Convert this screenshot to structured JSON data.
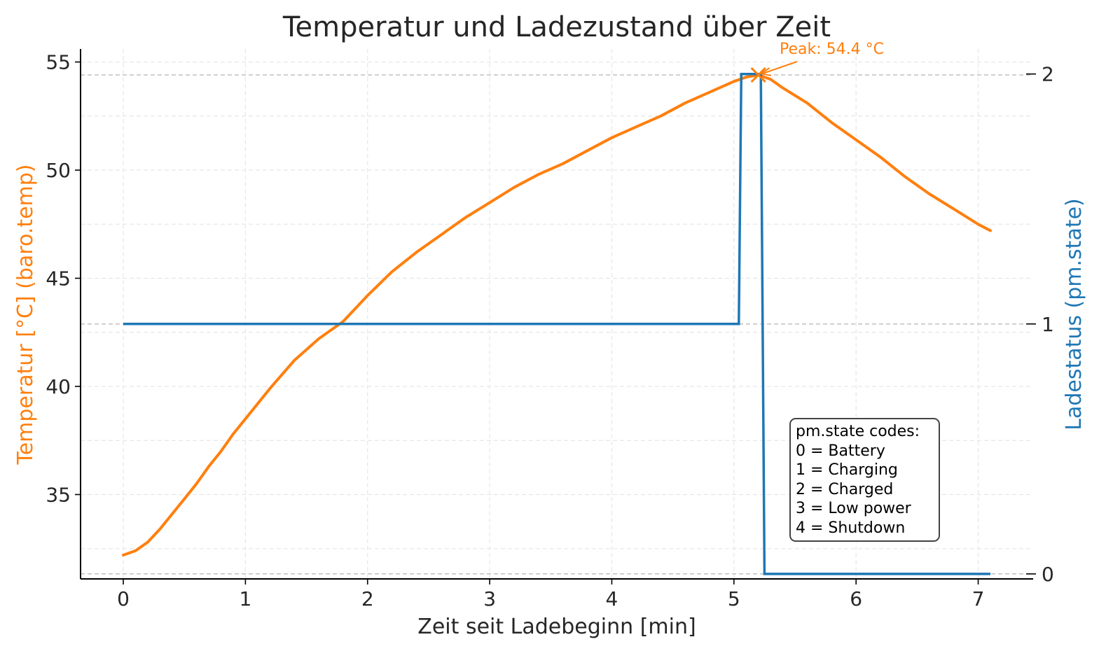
{
  "chart_data": {
    "type": "line",
    "title": "Temperatur und Ladezustand über Zeit",
    "xlabel": "Zeit seit Ladebeginn [min]",
    "ylabel_left": "Temperatur [°C] (baro.temp)",
    "ylabel_right": "Ladestatus (pm.state)",
    "xlim": [
      -0.35,
      7.45
    ],
    "ylim_left": [
      31.1,
      55.6
    ],
    "ylim_right": [
      -0.02,
      2.1
    ],
    "x_ticks": [
      0,
      1,
      2,
      3,
      4,
      5,
      6,
      7
    ],
    "x_tick_labels": [
      "0",
      "1",
      "2",
      "3",
      "4",
      "5",
      "6",
      "7"
    ],
    "y_left_ticks": [
      35,
      40,
      45,
      50,
      55
    ],
    "y_left_tick_labels": [
      "35",
      "40",
      "45",
      "50",
      "55"
    ],
    "y_right_ticks": [
      0,
      1,
      2
    ],
    "y_right_tick_labels": [
      "0",
      "1",
      "2"
    ],
    "grid": true,
    "colors": {
      "temperature": "#ff7f0e",
      "state": "#1f77b4",
      "grid": "#e6e6e6",
      "ref_line": "#bbbbbb"
    },
    "series": [
      {
        "axis": "left",
        "x": [
          0,
          0.1,
          0.2,
          0.3,
          0.4,
          0.5,
          0.6,
          0.7,
          0.8,
          0.9,
          1.0,
          1.2,
          1.4,
          1.6,
          1.8,
          2.0,
          2.2,
          2.4,
          2.6,
          2.8,
          3.0,
          3.2,
          3.4,
          3.6,
          3.8,
          4.0,
          4.2,
          4.4,
          4.6,
          4.8,
          5.0,
          5.1,
          5.2,
          5.3,
          5.4,
          5.6,
          5.8,
          6.0,
          6.2,
          6.4,
          6.6,
          6.8,
          7.0,
          7.1
        ],
        "values": [
          32.2,
          32.4,
          32.8,
          33.4,
          34.1,
          34.8,
          35.5,
          36.3,
          37.0,
          37.8,
          38.5,
          39.9,
          41.2,
          42.2,
          43.0,
          44.2,
          45.3,
          46.2,
          47.0,
          47.8,
          48.5,
          49.2,
          49.8,
          50.3,
          50.9,
          51.5,
          52.0,
          52.5,
          53.1,
          53.6,
          54.1,
          54.3,
          54.4,
          54.2,
          53.8,
          53.1,
          52.2,
          51.4,
          50.6,
          49.7,
          48.9,
          48.2,
          47.5,
          47.2
        ]
      },
      {
        "axis": "right",
        "x": [
          0,
          5.04,
          5.06,
          5.22,
          5.25,
          7.1
        ],
        "values": [
          1,
          1,
          2,
          2,
          0,
          0
        ]
      }
    ],
    "reference_lines": {
      "left_y": [
        54.4
      ],
      "right_y": [
        1,
        0
      ]
    },
    "peak": {
      "x": 5.2,
      "y": 54.4,
      "label": "Peak: 54.4 °C"
    },
    "legend_box": {
      "lines": [
        "pm.state codes:",
        "0 = Battery",
        "1 = Charging",
        "2 = Charged",
        "3 = Low power",
        "4 = Shutdown"
      ]
    }
  }
}
